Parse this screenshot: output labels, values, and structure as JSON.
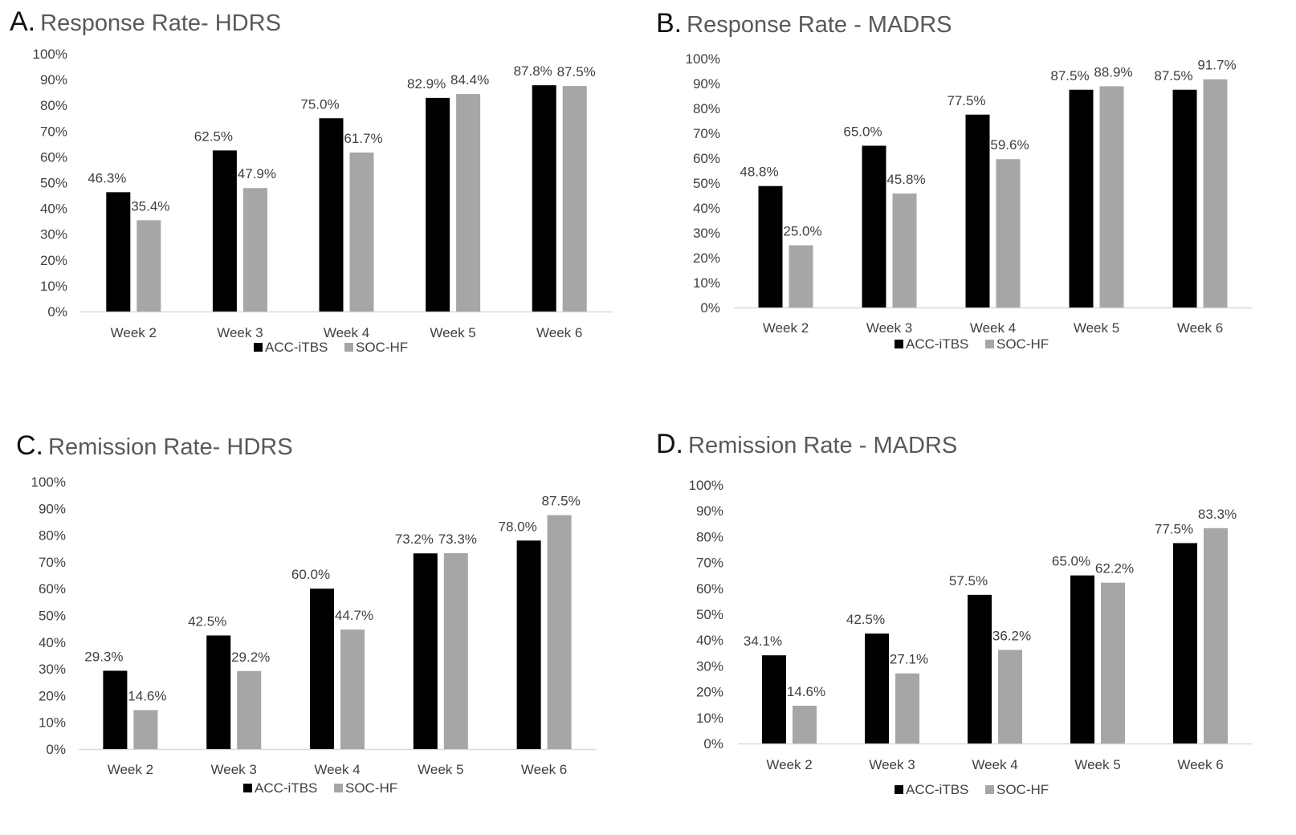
{
  "colors": {
    "acc": "#000000",
    "soc": "#a6a6a6",
    "axis": "#d9d9d9"
  },
  "chart_data": [
    {
      "type": "bar",
      "id": "A",
      "letter": "A.",
      "title": "Response Rate- HDRS",
      "categories": [
        "Week 2",
        "Week 3",
        "Week 4",
        "Week 5",
        "Week 6"
      ],
      "series": [
        {
          "name": "ACC-iTBS",
          "values": [
            46.3,
            62.5,
            75.0,
            82.9,
            87.8
          ],
          "labels": [
            "46.3%",
            "62.5%",
            "75.0%",
            "82.9%",
            "87.8%"
          ]
        },
        {
          "name": "SOC-HF",
          "values": [
            35.4,
            47.9,
            61.7,
            84.4,
            87.5
          ],
          "labels": [
            "35.4%",
            "47.9%",
            "61.7%",
            "84.4%",
            "87.5%"
          ]
        }
      ],
      "yticks": [
        "0%",
        "10%",
        "20%",
        "30%",
        "40%",
        "50%",
        "60%",
        "70%",
        "80%",
        "90%",
        "100%"
      ],
      "ylim": [
        0,
        100
      ],
      "legend": [
        "ACC-iTBS",
        "SOC-HF"
      ],
      "legend_position": "bottom"
    },
    {
      "type": "bar",
      "id": "B",
      "letter": "B.",
      "title": "Response Rate - MADRS",
      "categories": [
        "Week 2",
        "Week 3",
        "Week 4",
        "Week 5",
        "Week 6"
      ],
      "series": [
        {
          "name": "ACC-iTBS",
          "values": [
            48.8,
            65.0,
            77.5,
            87.5,
            87.5
          ],
          "labels": [
            "48.8%",
            "65.0%",
            "77.5%",
            "87.5%",
            "87.5%"
          ]
        },
        {
          "name": "SOC-HF",
          "values": [
            25.0,
            45.8,
            59.6,
            88.9,
            91.7
          ],
          "labels": [
            "25.0%",
            "45.8%",
            "59.6%",
            "88.9%",
            "91.7%"
          ]
        }
      ],
      "yticks": [
        "0%",
        "10%",
        "20%",
        "30%",
        "40%",
        "50%",
        "60%",
        "70%",
        "80%",
        "90%",
        "100%"
      ],
      "ylim": [
        0,
        100
      ],
      "legend": [
        "ACC-iTBS",
        "SOC-HF"
      ],
      "legend_position": "bottom"
    },
    {
      "type": "bar",
      "id": "C",
      "letter": "C.",
      "title": "Remission Rate- HDRS",
      "categories": [
        "Week 2",
        "Week 3",
        "Week 4",
        "Week 5",
        "Week 6"
      ],
      "series": [
        {
          "name": "ACC-iTBS",
          "values": [
            29.3,
            42.5,
            60.0,
            73.2,
            78.0
          ],
          "labels": [
            "29.3%",
            "42.5%",
            "60.0%",
            "73.2%",
            "78.0%"
          ]
        },
        {
          "name": "SOC-HF",
          "values": [
            14.6,
            29.2,
            44.7,
            73.3,
            87.5
          ],
          "labels": [
            "14.6%",
            "29.2%",
            "44.7%",
            "73.3%",
            "87.5%"
          ]
        }
      ],
      "yticks": [
        "0%",
        "10%",
        "20%",
        "30%",
        "40%",
        "50%",
        "60%",
        "70%",
        "80%",
        "90%",
        "100%"
      ],
      "ylim": [
        0,
        100
      ],
      "legend": [
        "ACC-iTBS",
        "SOC-HF"
      ],
      "legend_position": "bottom"
    },
    {
      "type": "bar",
      "id": "D",
      "letter": "D.",
      "title": "Remission Rate - MADRS",
      "categories": [
        "Week 2",
        "Week 3",
        "Week 4",
        "Week 5",
        "Week 6"
      ],
      "series": [
        {
          "name": "ACC-iTBS",
          "values": [
            34.1,
            42.5,
            57.5,
            65.0,
            77.5
          ],
          "labels": [
            "34.1%",
            "42.5%",
            "57.5%",
            "65.0%",
            "77.5%"
          ]
        },
        {
          "name": "SOC-HF",
          "values": [
            14.6,
            27.1,
            36.2,
            62.2,
            83.3
          ],
          "labels": [
            "14.6%",
            "27.1%",
            "36.2%",
            "62.2%",
            "83.3%"
          ]
        }
      ],
      "yticks": [
        "0%",
        "10%",
        "20%",
        "30%",
        "40%",
        "50%",
        "60%",
        "70%",
        "80%",
        "90%",
        "100%"
      ],
      "ylim": [
        0,
        100
      ],
      "legend": [
        "ACC-iTBS",
        "SOC-HF"
      ],
      "legend_position": "bottom"
    }
  ]
}
